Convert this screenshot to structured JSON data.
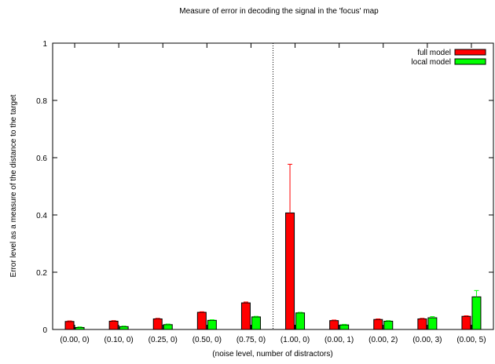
{
  "chart_data": {
    "type": "bar",
    "title": "Measure of error in decoding the signal in the 'focus' map",
    "xlabel": "(noise level, number of distractors)",
    "ylabel": "Error level as a measure of the distance to the target",
    "ylim": [
      0,
      1
    ],
    "yticks": [
      "0",
      "0.2",
      "0.4",
      "0.6",
      "0.8",
      "1"
    ],
    "categories": [
      "(0.00, 0)",
      "(0.10, 0)",
      "(0.25, 0)",
      "(0.50, 0)",
      "(0.75, 0)",
      "(1.00, 0)",
      "(0.00, 1)",
      "(0.00, 2)",
      "(0.00, 3)",
      "(0.00, 5)"
    ],
    "series": [
      {
        "name": "full model",
        "color": "#ff0000",
        "values": [
          0.028,
          0.029,
          0.037,
          0.06,
          0.093,
          0.407,
          0.031,
          0.035,
          0.037,
          0.046
        ],
        "errors": [
          0.002,
          0.002,
          0.002,
          0.002,
          0.003,
          0.17,
          0.002,
          0.002,
          0.002,
          0.002
        ]
      },
      {
        "name": "local model",
        "color": "#00ff00",
        "values": [
          0.007,
          0.01,
          0.017,
          0.032,
          0.044,
          0.058,
          0.016,
          0.029,
          0.041,
          0.114
        ],
        "errors": [
          0.002,
          0.002,
          0.002,
          0.002,
          0.002,
          0.002,
          0.002,
          0.002,
          0.004,
          0.022
        ]
      }
    ],
    "separator_after_category": 5,
    "legend_position": "top-right",
    "grid": false
  }
}
